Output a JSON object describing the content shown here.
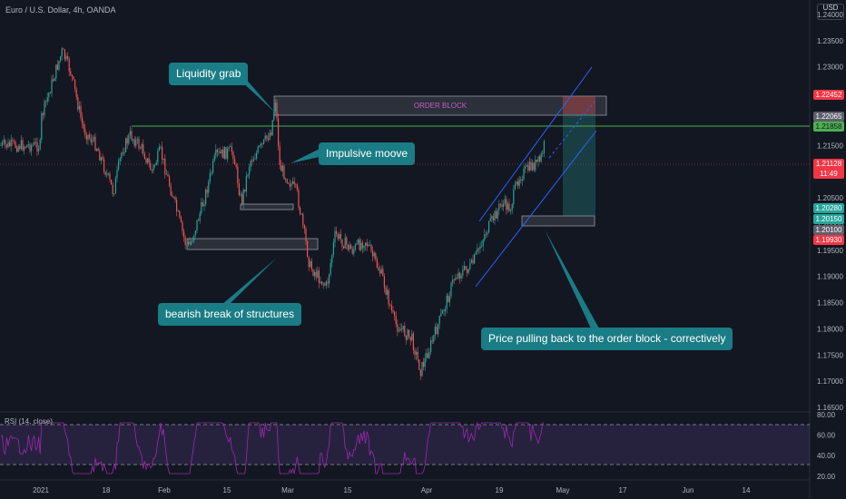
{
  "header": {
    "title": "Euro / U.S. Dollar, 4h, OANDA",
    "currency": "USD"
  },
  "rsi": {
    "label": "RSI (14, close)",
    "levels": [
      80,
      60,
      40,
      20
    ],
    "upper_band": 70,
    "lower_band": 30
  },
  "annotations": {
    "liquidity_grab": "Liquidity grab",
    "impulsive_move": "Impulsive moove",
    "bearish_break": "bearish break of structures",
    "pullback": "Price pulling back to the order block - correctively",
    "order_block": "ORDER BLOCK"
  },
  "price_tags": {
    "p1": "1.22452",
    "p2": "1.22065",
    "p3": "1.21858",
    "p4": "1.21128",
    "p4_time": "11:49",
    "p5": "1.20280",
    "p6": "1.20150",
    "p7": "1.20100",
    "p8": "1.19930"
  },
  "colors": {
    "background": "#131722",
    "bull": "#26a69a",
    "bear": "#ef5350",
    "callout": "#1a7c85",
    "rsi_line": "#9c27b0",
    "channel": "#2962ff",
    "level_line": "#4caf50"
  },
  "chart_data": {
    "type": "candlestick",
    "title": "Euro / U.S. Dollar, 4h, OANDA",
    "x_ticks": [
      "2021",
      "18",
      "Feb",
      "15",
      "Mar",
      "15",
      "Apr",
      "19",
      "May",
      "17",
      "Jun",
      "14"
    ],
    "y_ticks": [
      "1.24000",
      "1.23500",
      "1.23000",
      "1.22500",
      "1.22000",
      "1.21500",
      "1.21000",
      "1.20500",
      "1.20000",
      "1.19500",
      "1.19000",
      "1.18500",
      "1.18000",
      "1.17500",
      "1.17000",
      "1.16500"
    ],
    "ylim": [
      1.164,
      1.2415
    ],
    "price_path": [
      [
        "2021-01-01",
        1.22
      ],
      [
        "2021-01-04",
        1.228
      ],
      [
        "2021-01-06",
        1.233
      ],
      [
        "2021-01-08",
        1.229
      ],
      [
        "2021-01-11",
        1.218
      ],
      [
        "2021-01-14",
        1.215
      ],
      [
        "2021-01-18",
        1.206
      ],
      [
        "2021-01-20",
        1.214
      ],
      [
        "2021-01-22",
        1.217
      ],
      [
        "2021-01-25",
        1.214
      ],
      [
        "2021-01-27",
        1.21
      ],
      [
        "2021-01-29",
        1.214
      ],
      [
        "2021-02-02",
        1.202
      ],
      [
        "2021-02-04",
        1.196
      ],
      [
        "2021-02-05",
        1.196
      ],
      [
        "2021-02-08",
        1.204
      ],
      [
        "2021-02-11",
        1.213
      ],
      [
        "2021-02-15",
        1.214
      ],
      [
        "2021-02-17",
        1.204
      ],
      [
        "2021-02-19",
        1.212
      ],
      [
        "2021-02-22",
        1.215
      ],
      [
        "2021-02-24",
        1.218
      ],
      [
        "2021-02-25",
        1.224
      ],
      [
        "2021-02-26",
        1.211
      ],
      [
        "2021-03-02",
        1.206
      ],
      [
        "2021-03-04",
        1.197
      ],
      [
        "2021-03-05",
        1.192
      ],
      [
        "2021-03-09",
        1.188
      ],
      [
        "2021-03-11",
        1.198
      ],
      [
        "2021-03-15",
        1.195
      ],
      [
        "2021-03-18",
        1.197
      ],
      [
        "2021-03-22",
        1.19
      ],
      [
        "2021-03-25",
        1.181
      ],
      [
        "2021-03-29",
        1.178
      ],
      [
        "2021-03-31",
        1.172
      ],
      [
        "2021-04-02",
        1.176
      ],
      [
        "2021-04-06",
        1.185
      ],
      [
        "2021-04-08",
        1.19
      ],
      [
        "2021-04-12",
        1.192
      ],
      [
        "2021-04-15",
        1.198
      ],
      [
        "2021-04-19",
        1.204
      ],
      [
        "2021-04-21",
        1.203
      ],
      [
        "2021-04-23",
        1.209
      ],
      [
        "2021-04-26",
        1.211
      ],
      [
        "2021-04-28",
        1.212
      ],
      [
        "2021-04-29",
        1.215
      ]
    ],
    "zones": [
      {
        "label": "ORDER BLOCK",
        "price_top": 1.2245,
        "price_bottom": 1.2214
      },
      {
        "label": "",
        "price_top": 1.1957,
        "price_bottom": 1.1947
      },
      {
        "label": "",
        "price_top": 1.2036,
        "price_bottom": 1.2031
      },
      {
        "label": "",
        "price_top": 1.2015,
        "price_bottom": 1.2007
      }
    ],
    "level_line": 1.21858,
    "grid": false
  }
}
